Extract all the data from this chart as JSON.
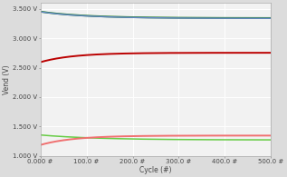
{
  "x_max": 500,
  "x_ticks": [
    0,
    100,
    200,
    300,
    400,
    500
  ],
  "x_tick_labels": [
    "0.000 #",
    "100.0 #",
    "200.0 #",
    "300.0 #",
    "400.0 #",
    "500.0 #"
  ],
  "xlabel": "Cycle (#)",
  "ylabel": "Vend (V)",
  "ylim": [
    1.0,
    3.6
  ],
  "y_ticks": [
    1.0,
    1.5,
    2.0,
    2.5,
    3.0,
    3.5
  ],
  "y_tick_labels": [
    "1.000 V",
    "1.500 V",
    "2.000 V",
    "2.500 V",
    "3.000 V",
    "3.500 V"
  ],
  "background_color": "#dcdcdc",
  "plot_bg_color": "#f2f2f2",
  "grid_color": "#ffffff",
  "curves": [
    {
      "name": "dark_green_charge",
      "color": "#1a7a1a",
      "start": 3.455,
      "end": 3.345,
      "decay_rate": 5.0,
      "lw": 1.4
    },
    {
      "name": "blue_charge",
      "color": "#6688cc",
      "start": 3.453,
      "end": 3.34,
      "decay_rate": 5.0,
      "lw": 1.0
    },
    {
      "name": "dark_red_discharge",
      "color": "#bb0000",
      "start": 2.595,
      "end": 2.755,
      "rise_rate": 7.0,
      "lw": 1.4
    },
    {
      "name": "light_green_discharge",
      "color": "#66cc44",
      "start": 1.355,
      "end": 1.27,
      "decay_rate": 4.0,
      "lw": 1.1
    },
    {
      "name": "pink_discharge",
      "color": "#f07070",
      "start": 1.185,
      "end": 1.345,
      "rise_rate": 7.0,
      "lw": 1.4
    }
  ]
}
